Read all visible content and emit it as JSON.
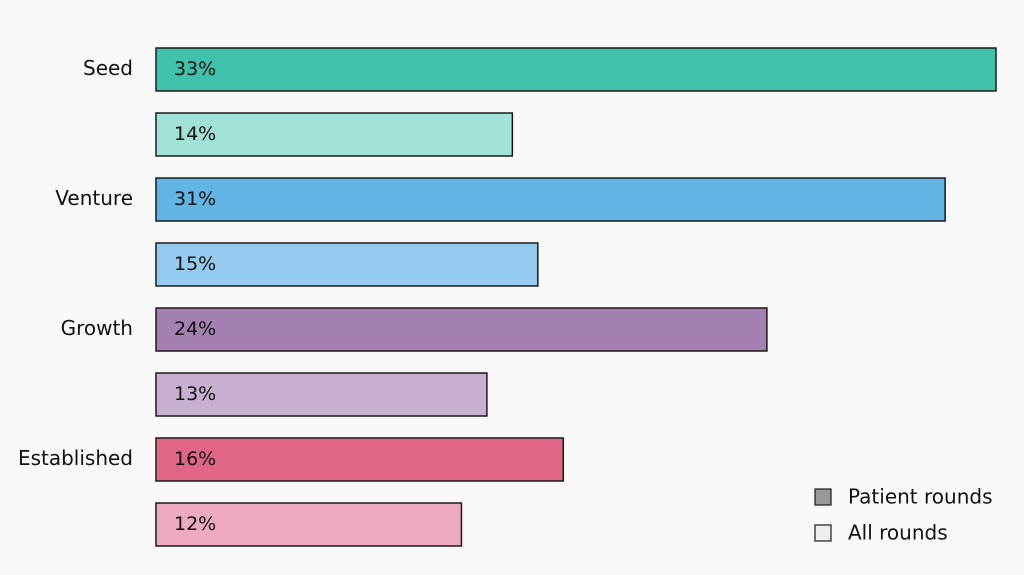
{
  "chart_data": {
    "type": "bar",
    "orientation": "horizontal",
    "categories": [
      "Seed",
      "Venture",
      "Growth",
      "Established"
    ],
    "series": [
      {
        "name": "Patient rounds",
        "values": [
          33,
          31,
          24,
          16
        ],
        "colors": [
          "#40c1a9",
          "#62b4e5",
          "#a480b2",
          "#e06587"
        ]
      },
      {
        "name": "All rounds",
        "values": [
          14,
          15,
          13,
          12
        ],
        "colors": [
          "#a0e2d5",
          "#93caee",
          "#c7afcf",
          "#eeaabe"
        ]
      }
    ],
    "value_suffix": "%",
    "xlim": [
      0,
      33
    ],
    "grid": false,
    "legend": {
      "position": "bottom-right",
      "swatch_colors": [
        "#999999",
        "#eeeeee"
      ]
    }
  }
}
